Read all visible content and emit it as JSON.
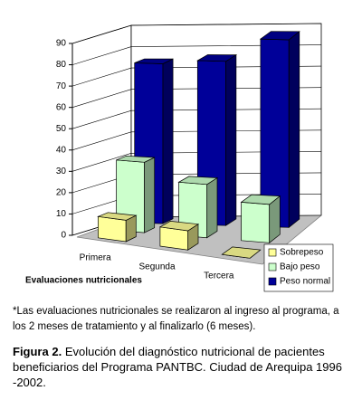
{
  "chart_data": {
    "type": "bar3d",
    "y_unit_label": "%",
    "x_label": "Evaluaciones nutricionales",
    "categories": [
      "Primera",
      "Segunda",
      "Tercera"
    ],
    "series": [
      {
        "name": "Sobrepeso",
        "color": "#ffff99",
        "values": [
          10,
          9,
          0
        ]
      },
      {
        "name": "Bajo peso",
        "color": "#ccffcc",
        "values": [
          33,
          25,
          18
        ]
      },
      {
        "name": "Peso normal",
        "color": "#000099",
        "values": [
          75,
          77,
          88
        ]
      }
    ],
    "ylim": [
      0,
      90
    ],
    "yticks": [
      0,
      10,
      20,
      30,
      40,
      50,
      60,
      70,
      80,
      90
    ],
    "grid": true,
    "legend": "lower-right"
  },
  "footnote": "*Las evaluaciones nutricionales se realizaron al ingreso al programa, a los 2 meses de tratamiento y al finalizarlo (6 meses).",
  "caption": {
    "label": "Figura 2.",
    "text": "Evolución del diagnóstico nutricional de pacientes beneficiarios del Programa PANTBC. Ciudad de Arequipa 1996 -2002."
  }
}
